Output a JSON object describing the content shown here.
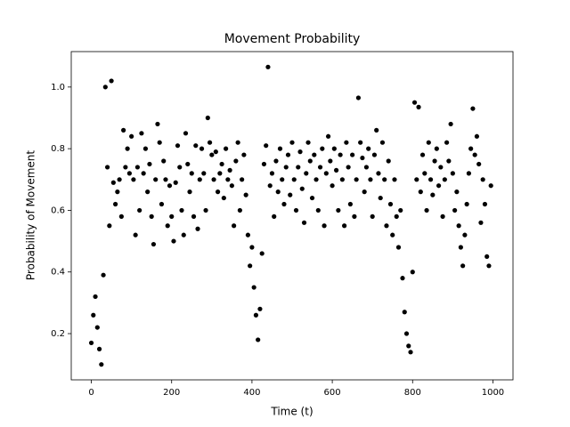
{
  "chart_data": {
    "type": "scatter",
    "title": "Movement Probability",
    "xlabel": "Time (t)",
    "ylabel": "Probability of Movement",
    "color": "#000000",
    "x": [
      0,
      5,
      10,
      15,
      20,
      25,
      30,
      35,
      40,
      45,
      50,
      55,
      60,
      65,
      70,
      75,
      80,
      85,
      90,
      95,
      100,
      105,
      110,
      115,
      120,
      125,
      130,
      135,
      140,
      145,
      150,
      155,
      160,
      165,
      170,
      175,
      180,
      185,
      190,
      195,
      200,
      205,
      210,
      215,
      220,
      225,
      230,
      235,
      240,
      245,
      250,
      255,
      260,
      265,
      270,
      275,
      280,
      285,
      290,
      295,
      300,
      305,
      310,
      315,
      320,
      325,
      330,
      335,
      340,
      345,
      350,
      355,
      360,
      365,
      370,
      375,
      380,
      385,
      390,
      395,
      400,
      405,
      410,
      415,
      420,
      425,
      430,
      435,
      440,
      445,
      450,
      455,
      460,
      465,
      470,
      475,
      480,
      485,
      490,
      495,
      500,
      505,
      510,
      515,
      520,
      525,
      530,
      535,
      540,
      545,
      550,
      555,
      560,
      565,
      570,
      575,
      580,
      585,
      590,
      595,
      600,
      605,
      610,
      615,
      620,
      625,
      630,
      635,
      640,
      645,
      650,
      655,
      660,
      665,
      670,
      675,
      680,
      685,
      690,
      695,
      700,
      705,
      710,
      715,
      720,
      725,
      730,
      735,
      740,
      745,
      750,
      755,
      760,
      765,
      770,
      775,
      780,
      785,
      790,
      795,
      800,
      805,
      810,
      815,
      820,
      825,
      830,
      835,
      840,
      845,
      850,
      855,
      860,
      865,
      870,
      875,
      880,
      885,
      890,
      895,
      900,
      905,
      910,
      915,
      920,
      925,
      930,
      935,
      940,
      945,
      950,
      955,
      960,
      965,
      970,
      975,
      980,
      985,
      990,
      995
    ],
    "values": [
      0.17,
      0.26,
      0.32,
      0.22,
      0.15,
      0.1,
      0.39,
      1.0,
      0.74,
      0.55,
      1.02,
      0.69,
      0.62,
      0.66,
      0.7,
      0.58,
      0.86,
      0.74,
      0.8,
      0.72,
      0.84,
      0.7,
      0.52,
      0.74,
      0.6,
      0.85,
      0.72,
      0.8,
      0.66,
      0.75,
      0.58,
      0.49,
      0.7,
      0.88,
      0.82,
      0.62,
      0.76,
      0.7,
      0.55,
      0.68,
      0.58,
      0.5,
      0.69,
      0.81,
      0.74,
      0.6,
      0.52,
      0.85,
      0.75,
      0.66,
      0.72,
      0.58,
      0.81,
      0.54,
      0.7,
      0.8,
      0.72,
      0.6,
      0.9,
      0.82,
      0.78,
      0.7,
      0.79,
      0.66,
      0.72,
      0.75,
      0.64,
      0.8,
      0.7,
      0.73,
      0.68,
      0.55,
      0.76,
      0.82,
      0.6,
      0.7,
      0.78,
      0.65,
      0.52,
      0.42,
      0.48,
      0.35,
      0.26,
      0.18,
      0.28,
      0.46,
      0.75,
      0.81,
      1.065,
      0.68,
      0.72,
      0.58,
      0.76,
      0.66,
      0.8,
      0.7,
      0.62,
      0.74,
      0.78,
      0.65,
      0.82,
      0.7,
      0.6,
      0.74,
      0.79,
      0.67,
      0.56,
      0.72,
      0.82,
      0.76,
      0.64,
      0.78,
      0.7,
      0.6,
      0.74,
      0.8,
      0.55,
      0.72,
      0.84,
      0.76,
      0.68,
      0.8,
      0.73,
      0.6,
      0.78,
      0.7,
      0.55,
      0.82,
      0.74,
      0.62,
      0.78,
      0.58,
      0.7,
      0.965,
      0.82,
      0.77,
      0.66,
      0.74,
      0.8,
      0.7,
      0.58,
      0.78,
      0.86,
      0.72,
      0.64,
      0.82,
      0.7,
      0.55,
      0.76,
      0.62,
      0.52,
      0.7,
      0.58,
      0.48,
      0.6,
      0.38,
      0.27,
      0.2,
      0.16,
      0.14,
      0.4,
      0.95,
      0.7,
      0.935,
      0.66,
      0.78,
      0.72,
      0.6,
      0.82,
      0.7,
      0.65,
      0.76,
      0.8,
      0.68,
      0.74,
      0.58,
      0.7,
      0.82,
      0.76,
      0.88,
      0.72,
      0.6,
      0.66,
      0.55,
      0.48,
      0.42,
      0.52,
      0.62,
      0.72,
      0.8,
      0.93,
      0.78,
      0.84,
      0.75,
      0.56,
      0.7,
      0.62,
      0.45,
      0.42,
      0.68
    ],
    "xlim": [
      -50,
      1050
    ],
    "ylim": [
      0.05,
      1.115
    ],
    "xticks": [
      0,
      200,
      400,
      600,
      800,
      1000
    ],
    "yticks": [
      0.2,
      0.4,
      0.6,
      0.8,
      {
        "value": 1,
        "label": "1.0"
      }
    ]
  }
}
